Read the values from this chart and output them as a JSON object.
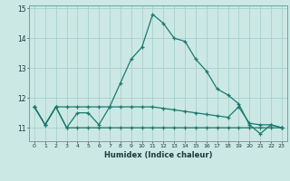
{
  "xlabel": "Humidex (Indice chaleur)",
  "x": [
    0,
    1,
    2,
    3,
    4,
    5,
    6,
    7,
    8,
    9,
    10,
    11,
    12,
    13,
    14,
    15,
    16,
    17,
    18,
    19,
    20,
    21,
    22,
    23
  ],
  "line1": [
    11.7,
    11.1,
    11.7,
    11.0,
    11.5,
    11.5,
    11.1,
    11.7,
    12.5,
    13.3,
    13.7,
    14.8,
    14.5,
    14.0,
    13.9,
    13.3,
    12.9,
    12.3,
    12.1,
    11.8,
    11.1,
    10.8,
    11.1,
    11.0
  ],
  "line2": [
    11.7,
    11.1,
    11.7,
    11.0,
    11.0,
    11.0,
    11.0,
    11.0,
    11.0,
    11.0,
    11.0,
    11.0,
    11.0,
    11.0,
    11.0,
    11.0,
    11.0,
    11.0,
    11.0,
    11.0,
    11.0,
    11.0,
    11.0,
    11.0
  ],
  "line3": [
    11.7,
    11.1,
    11.7,
    11.7,
    11.7,
    11.7,
    11.7,
    11.7,
    11.7,
    11.7,
    11.7,
    11.7,
    11.65,
    11.6,
    11.55,
    11.5,
    11.45,
    11.4,
    11.35,
    11.7,
    11.15,
    11.1,
    11.1,
    11.0
  ],
  "line_color": "#1a7a6e",
  "bg_color": "#cce8e4",
  "grid_color": "#a0ccc8",
  "ylim_min": 10.55,
  "ylim_max": 15.1,
  "yticks": [
    11,
    12,
    13,
    14,
    15
  ]
}
